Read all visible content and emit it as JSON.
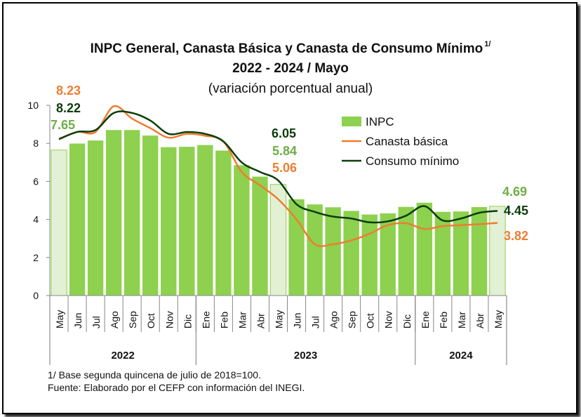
{
  "title_line1": "INPC General, Canasta Básica  y Canasta de Consumo Mínimo",
  "title_sup": "1/",
  "title_line2": "2022 - 2024 / Mayo",
  "subtitle": "(variación porcentual anual)",
  "footnote": "1/ Base segunda quincena de julio de 2018=100.",
  "source": "Fuente: Elaborado por el CEFP con información del INEGI.",
  "colors": {
    "inpc": "#8dd14f",
    "inpc_highlight": "#e2f0d4",
    "canasta": "#ee7d31",
    "consumo": "#0b3d0b",
    "inpc_label": "#70ad47"
  },
  "chart_data": {
    "type": "bar",
    "ylim": [
      0,
      10
    ],
    "yticks": [
      "0",
      "2",
      "4",
      "6",
      "8",
      "10"
    ],
    "categories": [
      "May",
      "Jun",
      "Jul",
      "Ago",
      "Sep",
      "Oct",
      "Nov",
      "Dic",
      "Ene",
      "Feb",
      "Mar",
      "Abr",
      "May",
      "Jun",
      "Jul",
      "Ago",
      "Sep",
      "Oct",
      "Nov",
      "Dic",
      "Ene",
      "Feb",
      "Mar",
      "Abr",
      "May"
    ],
    "years": [
      {
        "label": "2022",
        "start": 0,
        "end": 7
      },
      {
        "label": "2023",
        "start": 8,
        "end": 19
      },
      {
        "label": "2024",
        "start": 20,
        "end": 24
      }
    ],
    "highlight_indices": [
      0,
      12,
      24
    ],
    "legend": [
      "INPC",
      "Canasta básica",
      "Consumo mínimo"
    ],
    "series": [
      {
        "name": "INPC",
        "kind": "bar",
        "values": [
          7.65,
          7.99,
          8.15,
          8.7,
          8.7,
          8.41,
          7.8,
          7.82,
          7.91,
          7.62,
          6.85,
          6.25,
          5.84,
          5.06,
          4.79,
          4.64,
          4.45,
          4.26,
          4.32,
          4.66,
          4.88,
          4.4,
          4.42,
          4.65,
          4.69
        ]
      },
      {
        "name": "Canasta básica",
        "kind": "line",
        "values": [
          8.23,
          8.6,
          8.6,
          9.95,
          9.3,
          8.8,
          8.3,
          8.5,
          8.4,
          8.1,
          6.5,
          5.8,
          5.06,
          4.0,
          2.7,
          2.7,
          2.9,
          3.25,
          3.7,
          3.8,
          3.5,
          3.65,
          3.7,
          3.75,
          3.82
        ]
      },
      {
        "name": "Consumo mínimo",
        "kind": "line",
        "values": [
          8.22,
          8.6,
          8.7,
          9.6,
          9.6,
          9.2,
          8.5,
          8.6,
          8.5,
          8.1,
          7.0,
          6.5,
          6.05,
          4.8,
          4.4,
          4.15,
          4.05,
          3.85,
          3.9,
          4.2,
          4.7,
          3.95,
          4.05,
          4.35,
          4.45
        ]
      }
    ],
    "annotations": [
      {
        "text": "8.23",
        "series": "Canasta básica"
      },
      {
        "text": "8.22",
        "series": "Consumo mínimo"
      },
      {
        "text": "7.65",
        "series": "INPC"
      },
      {
        "text": "6.05",
        "series": "Consumo mínimo"
      },
      {
        "text": "5.84",
        "series": "INPC"
      },
      {
        "text": "5.06",
        "series": "Canasta básica"
      },
      {
        "text": "4.69",
        "series": "INPC"
      },
      {
        "text": "4.45",
        "series": "Consumo mínimo"
      },
      {
        "text": "3.82",
        "series": "Canasta básica"
      }
    ]
  }
}
